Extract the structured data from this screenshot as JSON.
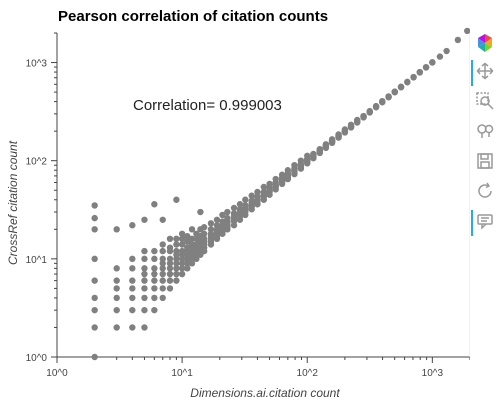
{
  "chart_data": {
    "type": "scatter",
    "title": "Pearson correlation of citation counts",
    "xlabel": "Dimensions.ai.citation count",
    "ylabel": "CrossRef citation count",
    "x_scale": "log",
    "y_scale": "log",
    "xlim": [
      1,
      2000
    ],
    "ylim": [
      1,
      2000
    ],
    "x_ticks": [
      "10^0",
      "10^1",
      "10^2",
      "10^3"
    ],
    "y_ticks": [
      "10^0",
      "10^1",
      "10^2",
      "10^3"
    ],
    "annotation": "Correlation= 0.999003",
    "marker_color": "#808080",
    "grid": false,
    "points": [
      [
        2,
        1
      ],
      [
        2,
        2
      ],
      [
        2,
        3
      ],
      [
        2,
        4
      ],
      [
        2,
        6
      ],
      [
        2,
        10
      ],
      [
        2,
        20
      ],
      [
        2,
        26
      ],
      [
        2,
        35
      ],
      [
        3,
        2
      ],
      [
        3,
        3
      ],
      [
        3,
        4
      ],
      [
        3,
        5
      ],
      [
        3,
        6
      ],
      [
        3,
        8
      ],
      [
        3,
        20
      ],
      [
        4,
        2
      ],
      [
        4,
        3
      ],
      [
        4,
        4
      ],
      [
        4,
        5
      ],
      [
        4,
        6
      ],
      [
        4,
        8
      ],
      [
        4,
        10
      ],
      [
        4,
        22
      ],
      [
        5,
        2
      ],
      [
        5,
        3
      ],
      [
        5,
        4
      ],
      [
        5,
        5
      ],
      [
        5,
        6
      ],
      [
        5,
        7
      ],
      [
        5,
        8
      ],
      [
        5,
        10
      ],
      [
        5,
        12
      ],
      [
        5,
        25
      ],
      [
        6,
        3
      ],
      [
        6,
        4
      ],
      [
        6,
        5
      ],
      [
        6,
        6
      ],
      [
        6,
        7
      ],
      [
        6,
        8
      ],
      [
        6,
        10
      ],
      [
        6,
        12
      ],
      [
        6,
        36
      ],
      [
        7,
        4
      ],
      [
        7,
        5
      ],
      [
        7,
        6
      ],
      [
        7,
        7
      ],
      [
        7,
        8
      ],
      [
        7,
        9
      ],
      [
        7,
        10
      ],
      [
        7,
        12
      ],
      [
        7,
        14
      ],
      [
        7,
        25
      ],
      [
        8,
        5
      ],
      [
        8,
        6
      ],
      [
        8,
        7
      ],
      [
        8,
        8
      ],
      [
        8,
        9
      ],
      [
        8,
        10
      ],
      [
        8,
        12
      ],
      [
        8,
        13
      ],
      [
        8,
        16
      ],
      [
        9,
        6
      ],
      [
        9,
        7
      ],
      [
        9,
        8
      ],
      [
        9,
        9
      ],
      [
        9,
        10
      ],
      [
        9,
        11
      ],
      [
        9,
        12
      ],
      [
        9,
        14
      ],
      [
        9,
        16
      ],
      [
        9,
        40
      ],
      [
        10,
        7
      ],
      [
        10,
        8
      ],
      [
        10,
        9
      ],
      [
        10,
        10
      ],
      [
        10,
        11
      ],
      [
        10,
        12
      ],
      [
        10,
        14
      ],
      [
        10,
        16
      ],
      [
        10,
        18
      ],
      [
        11,
        8
      ],
      [
        11,
        9
      ],
      [
        11,
        10
      ],
      [
        11,
        11
      ],
      [
        11,
        12
      ],
      [
        11,
        13
      ],
      [
        11,
        15
      ],
      [
        11,
        17
      ],
      [
        12,
        9
      ],
      [
        12,
        10
      ],
      [
        12,
        11
      ],
      [
        12,
        12
      ],
      [
        12,
        13
      ],
      [
        12,
        14
      ],
      [
        12,
        16
      ],
      [
        12,
        20
      ],
      [
        13,
        10
      ],
      [
        13,
        11
      ],
      [
        13,
        12
      ],
      [
        13,
        13
      ],
      [
        13,
        14
      ],
      [
        13,
        16
      ],
      [
        13,
        18
      ],
      [
        14,
        11
      ],
      [
        14,
        12
      ],
      [
        14,
        13
      ],
      [
        14,
        14
      ],
      [
        14,
        15
      ],
      [
        14,
        17
      ],
      [
        14,
        20
      ],
      [
        14,
        30
      ],
      [
        15,
        12
      ],
      [
        15,
        13
      ],
      [
        15,
        14
      ],
      [
        15,
        15
      ],
      [
        15,
        16
      ],
      [
        15,
        18
      ],
      [
        15,
        21
      ],
      [
        17,
        14
      ],
      [
        17,
        15
      ],
      [
        17,
        16
      ],
      [
        17,
        17
      ],
      [
        17,
        18
      ],
      [
        17,
        20
      ],
      [
        17,
        23
      ],
      [
        19,
        16
      ],
      [
        19,
        17
      ],
      [
        19,
        18
      ],
      [
        19,
        19
      ],
      [
        19,
        20
      ],
      [
        19,
        22
      ],
      [
        19,
        25
      ],
      [
        21,
        18
      ],
      [
        21,
        19
      ],
      [
        21,
        20
      ],
      [
        21,
        21
      ],
      [
        21,
        22
      ],
      [
        21,
        24
      ],
      [
        21,
        28
      ],
      [
        23,
        20
      ],
      [
        23,
        21
      ],
      [
        23,
        22
      ],
      [
        23,
        23
      ],
      [
        23,
        24
      ],
      [
        23,
        26
      ],
      [
        23,
        30
      ],
      [
        26,
        22
      ],
      [
        26,
        24
      ],
      [
        26,
        25
      ],
      [
        26,
        26
      ],
      [
        26,
        27
      ],
      [
        26,
        29
      ],
      [
        26,
        33
      ],
      [
        29,
        25
      ],
      [
        29,
        27
      ],
      [
        29,
        28
      ],
      [
        29,
        29
      ],
      [
        29,
        30
      ],
      [
        29,
        32
      ],
      [
        29,
        36
      ],
      [
        32,
        28
      ],
      [
        32,
        30
      ],
      [
        32,
        31
      ],
      [
        32,
        32
      ],
      [
        32,
        33
      ],
      [
        32,
        35
      ],
      [
        32,
        40
      ],
      [
        36,
        32
      ],
      [
        36,
        34
      ],
      [
        36,
        35
      ],
      [
        36,
        36
      ],
      [
        36,
        37
      ],
      [
        36,
        39
      ],
      [
        36,
        44
      ],
      [
        40,
        36
      ],
      [
        40,
        38
      ],
      [
        40,
        39
      ],
      [
        40,
        40
      ],
      [
        40,
        41
      ],
      [
        40,
        43
      ],
      [
        40,
        48
      ],
      [
        45,
        40
      ],
      [
        45,
        43
      ],
      [
        45,
        44
      ],
      [
        45,
        45
      ],
      [
        45,
        46
      ],
      [
        45,
        48
      ],
      [
        45,
        54
      ],
      [
        50,
        45
      ],
      [
        50,
        48
      ],
      [
        50,
        49
      ],
      [
        50,
        50
      ],
      [
        50,
        51
      ],
      [
        50,
        53
      ],
      [
        50,
        58
      ],
      [
        56,
        51
      ],
      [
        56,
        54
      ],
      [
        56,
        55
      ],
      [
        56,
        56
      ],
      [
        56,
        57
      ],
      [
        56,
        60
      ],
      [
        56,
        65
      ],
      [
        63,
        58
      ],
      [
        63,
        61
      ],
      [
        63,
        62
      ],
      [
        63,
        63
      ],
      [
        63,
        64
      ],
      [
        63,
        67
      ],
      [
        63,
        72
      ],
      [
        70,
        65
      ],
      [
        70,
        68
      ],
      [
        70,
        69
      ],
      [
        70,
        70
      ],
      [
        70,
        71
      ],
      [
        70,
        74
      ],
      [
        70,
        80
      ],
      [
        79,
        73
      ],
      [
        79,
        76
      ],
      [
        79,
        78
      ],
      [
        79,
        79
      ],
      [
        79,
        80
      ],
      [
        79,
        83
      ],
      [
        79,
        90
      ],
      [
        89,
        83
      ],
      [
        89,
        86
      ],
      [
        89,
        88
      ],
      [
        89,
        89
      ],
      [
        89,
        90
      ],
      [
        89,
        93
      ],
      [
        89,
        100
      ],
      [
        100,
        94
      ],
      [
        100,
        97
      ],
      [
        100,
        99
      ],
      [
        100,
        100
      ],
      [
        100,
        101
      ],
      [
        100,
        104
      ],
      [
        100,
        112
      ],
      [
        112,
        106
      ],
      [
        112,
        109
      ],
      [
        112,
        111
      ],
      [
        112,
        112
      ],
      [
        112,
        113
      ],
      [
        112,
        117
      ],
      [
        126,
        120
      ],
      [
        126,
        123
      ],
      [
        126,
        125
      ],
      [
        126,
        126
      ],
      [
        126,
        127
      ],
      [
        126,
        131
      ],
      [
        141,
        135
      ],
      [
        141,
        138
      ],
      [
        141,
        140
      ],
      [
        141,
        141
      ],
      [
        141,
        143
      ],
      [
        141,
        147
      ],
      [
        158,
        152
      ],
      [
        158,
        155
      ],
      [
        158,
        157
      ],
      [
        158,
        158
      ],
      [
        158,
        160
      ],
      [
        158,
        165
      ],
      [
        178,
        172
      ],
      [
        178,
        175
      ],
      [
        178,
        177
      ],
      [
        178,
        178
      ],
      [
        178,
        180
      ],
      [
        178,
        185
      ],
      [
        200,
        194
      ],
      [
        200,
        197
      ],
      [
        200,
        199
      ],
      [
        200,
        200
      ],
      [
        200,
        202
      ],
      [
        200,
        208
      ],
      [
        224,
        218
      ],
      [
        224,
        222
      ],
      [
        224,
        224
      ],
      [
        224,
        226
      ],
      [
        224,
        232
      ],
      [
        251,
        245
      ],
      [
        251,
        249
      ],
      [
        251,
        251
      ],
      [
        251,
        253
      ],
      [
        251,
        260
      ],
      [
        282,
        276
      ],
      [
        282,
        280
      ],
      [
        282,
        282
      ],
      [
        282,
        285
      ],
      [
        316,
        310
      ],
      [
        316,
        314
      ],
      [
        316,
        316
      ],
      [
        316,
        320
      ],
      [
        355,
        350
      ],
      [
        355,
        355
      ],
      [
        355,
        360
      ],
      [
        398,
        394
      ],
      [
        398,
        398
      ],
      [
        398,
        404
      ],
      [
        447,
        443
      ],
      [
        447,
        447
      ],
      [
        447,
        452
      ],
      [
        501,
        498
      ],
      [
        501,
        501
      ],
      [
        501,
        506
      ],
      [
        562,
        560
      ],
      [
        562,
        562
      ],
      [
        562,
        567
      ],
      [
        631,
        630
      ],
      [
        631,
        636
      ],
      [
        708,
        706
      ],
      [
        708,
        712
      ],
      [
        794,
        792
      ],
      [
        794,
        800
      ],
      [
        891,
        890
      ],
      [
        891,
        897
      ],
      [
        1000,
        1000
      ],
      [
        1000,
        1008
      ],
      [
        1150,
        1150
      ],
      [
        1300,
        1310
      ],
      [
        1600,
        1700
      ],
      [
        1900,
        2100
      ]
    ]
  },
  "toolbar": {
    "items": [
      {
        "name": "bokeh-logo-icon",
        "label": "Bokeh"
      },
      {
        "name": "pan-icon",
        "label": "Pan"
      },
      {
        "name": "box-zoom-icon",
        "label": "Box Zoom"
      },
      {
        "name": "wheel-zoom-icon",
        "label": "Wheel Zoom"
      },
      {
        "name": "save-icon",
        "label": "Save"
      },
      {
        "name": "reset-icon",
        "label": "Reset"
      },
      {
        "name": "hover-icon",
        "label": "Hover"
      }
    ]
  }
}
